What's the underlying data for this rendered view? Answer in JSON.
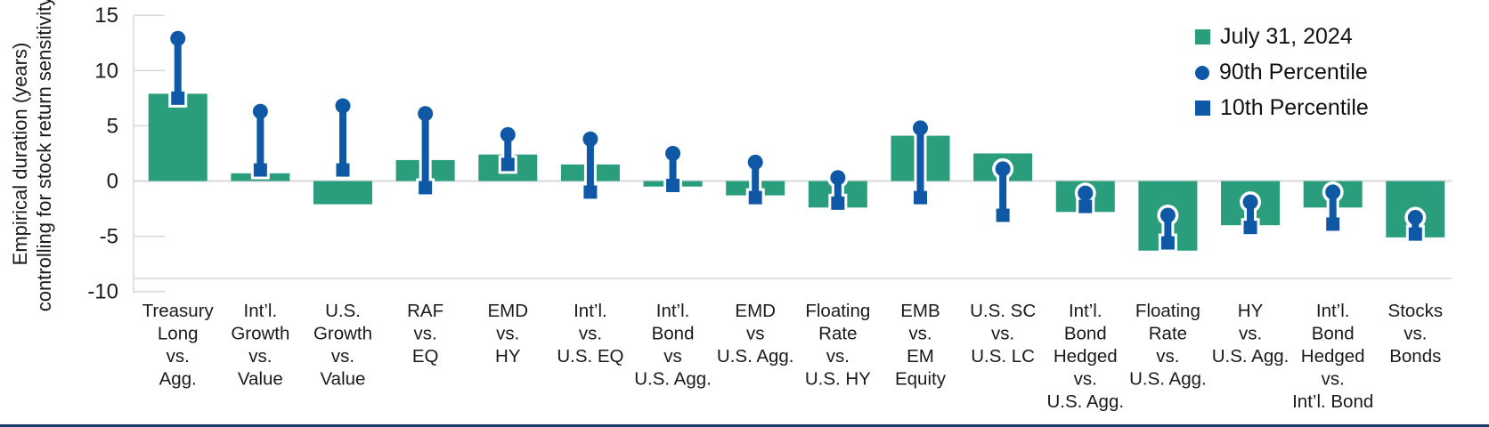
{
  "colors": {
    "bar_green": "#2a9d7c",
    "percentile_blue": "#0f58a5",
    "grid_grey": "#d9d9d9",
    "text": "#1a1a1a",
    "bottom_rule_navy": "#1e3a68"
  },
  "y_axis": {
    "title_line1": "Empirical duration (years)",
    "title_line2": "controlling for stock return sensitivity",
    "ticks": [
      15,
      10,
      5,
      0,
      -5,
      -10
    ]
  },
  "legend": {
    "items": [
      {
        "label": "July 31, 2024",
        "marker": "square",
        "color": "#2a9d7c"
      },
      {
        "label": "90th Percentile",
        "marker": "circle",
        "color": "#0f58a5"
      },
      {
        "label": "10th Percentile",
        "marker": "square",
        "color": "#0f58a5"
      }
    ]
  },
  "chart_data": {
    "type": "bar",
    "title": "",
    "ylabel": "Empirical duration (years) controlling for stock return sensitivity",
    "ylim": [
      -10,
      15
    ],
    "grid": "zero-line-only",
    "legend_position": "top-right",
    "categories": [
      "Treasury Long vs. Agg.",
      "Int’l. Growth vs. Value",
      "U.S. Growth vs. Value",
      "RAF vs. EQ",
      "EMD vs. HY",
      "Int’l. vs. U.S. EQ",
      "Int’l. Bond vs U.S. Agg.",
      "EMD vs U.S. Agg.",
      "Floating Rate vs. U.S. HY",
      "EMB vs. EM Equity",
      "U.S. SC vs. U.S. LC",
      "Int’l. Bond Hedged vs. U.S. Agg.",
      "Floating Rate vs. U.S. Agg.",
      "HY vs. U.S. Agg.",
      "Int’l. Bond Hedged vs. Int’l. Bond",
      "Stocks vs. Bonds"
    ],
    "category_label_lines": [
      [
        "Treasury",
        "Long",
        "vs.",
        "Agg."
      ],
      [
        "Int’l.",
        "Growth",
        "vs.",
        "Value"
      ],
      [
        "U.S.",
        "Growth",
        "vs.",
        "Value"
      ],
      [
        "RAF",
        "vs.",
        "EQ"
      ],
      [
        "EMD",
        "vs.",
        "HY"
      ],
      [
        "Int’l.",
        "vs.",
        "U.S. EQ"
      ],
      [
        "Int’l.",
        "Bond",
        "vs",
        "U.S. Agg."
      ],
      [
        "EMD",
        "vs",
        "U.S. Agg."
      ],
      [
        "Floating",
        "Rate",
        "vs.",
        "U.S. HY"
      ],
      [
        "EMB",
        "vs.",
        "EM",
        "Equity"
      ],
      [
        "U.S. SC",
        "vs.",
        "U.S. LC"
      ],
      [
        "Int’l.",
        "Bond",
        "Hedged",
        "vs.",
        "U.S. Agg."
      ],
      [
        "Floating",
        "Rate",
        "vs.",
        "U.S. Agg."
      ],
      [
        "HY",
        "vs.",
        "U.S. Agg."
      ],
      [
        "Int’l.",
        "Bond",
        "Hedged",
        "vs.",
        "Int’l. Bond"
      ],
      [
        "Stocks",
        "vs.",
        "Bonds"
      ]
    ],
    "series": [
      {
        "name": "July 31, 2024",
        "type": "bar",
        "color": "#2a9d7c",
        "values": [
          7.9,
          0.7,
          -2.1,
          1.9,
          2.4,
          1.5,
          -0.5,
          -1.3,
          -2.4,
          4.1,
          2.5,
          -2.8,
          -6.3,
          -4.0,
          -2.4,
          -5.1
        ]
      },
      {
        "name": "90th Percentile",
        "type": "point",
        "marker": "circle",
        "color": "#0f58a5",
        "values": [
          12.9,
          6.3,
          6.8,
          6.1,
          4.2,
          3.8,
          2.5,
          1.7,
          0.3,
          4.8,
          1.1,
          -1.1,
          -3.1,
          -1.9,
          -1.0,
          -3.3
        ]
      },
      {
        "name": "10th Percentile",
        "type": "point",
        "marker": "square",
        "color": "#0f58a5",
        "values": [
          7.5,
          1.0,
          1.0,
          -0.6,
          1.5,
          -1.0,
          -0.4,
          -1.5,
          -2.0,
          -1.5,
          -3.1,
          -2.3,
          -5.6,
          -4.2,
          -3.9,
          -4.8
        ]
      }
    ]
  }
}
